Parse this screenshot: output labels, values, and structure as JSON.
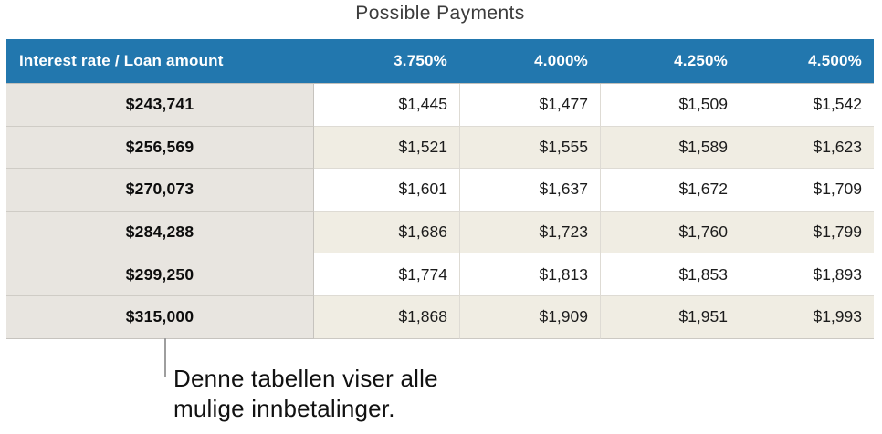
{
  "title": "Possible Payments",
  "table": {
    "header_label": "Interest rate / Loan amount",
    "columns": [
      "3.750%",
      "4.000%",
      "4.250%",
      "4.500%"
    ],
    "rows": [
      {
        "label": "$243,741",
        "values": [
          "$1,445",
          "$1,477",
          "$1,509",
          "$1,542"
        ]
      },
      {
        "label": "$256,569",
        "values": [
          "$1,521",
          "$1,555",
          "$1,589",
          "$1,623"
        ]
      },
      {
        "label": "$270,073",
        "values": [
          "$1,601",
          "$1,637",
          "$1,672",
          "$1,709"
        ]
      },
      {
        "label": "$284,288",
        "values": [
          "$1,686",
          "$1,723",
          "$1,760",
          "$1,799"
        ]
      },
      {
        "label": "$299,250",
        "values": [
          "$1,774",
          "$1,813",
          "$1,853",
          "$1,893"
        ]
      },
      {
        "label": "$315,000",
        "values": [
          "$1,868",
          "$1,909",
          "$1,951",
          "$1,993"
        ]
      }
    ]
  },
  "callout": {
    "line1": "Denne tabellen viser alle",
    "line2": "mulige innbetalinger."
  },
  "colors": {
    "header_bg": "#2277ae",
    "header_text": "#ffffff",
    "label_column_bg": "#e8e5e0",
    "alt_row_bg": "#f0ede3",
    "row_bg": "#ffffff",
    "callout_line": "#9e9e9e"
  }
}
